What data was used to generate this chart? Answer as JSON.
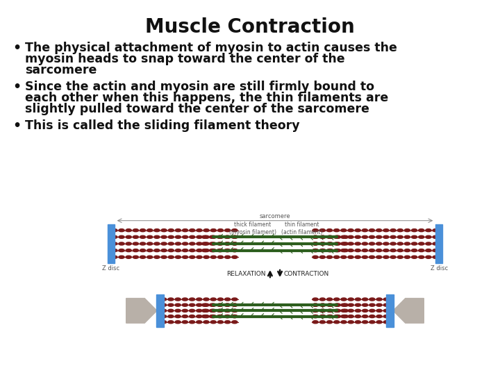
{
  "title": "Muscle Contraction",
  "bullet1_line1": "The physical attachment of myosin to actin causes the",
  "bullet1_line2": "myosin heads to snap toward the center of the",
  "bullet1_line3": "sarcomere",
  "bullet2_line1": "Since the actin and myosin are still firmly bound to",
  "bullet2_line2": "each other when this happens, the thin filaments are",
  "bullet2_line3": "slightly pulled toward the center of the sarcomere",
  "bullet3_line1": "This is called the sliding filament theory",
  "background_color": "#ffffff",
  "title_fontsize": 20,
  "bullet_fontsize": 12.5,
  "actin_color": "#7a1a1a",
  "myosin_color": "#2d5e1e",
  "zdisc_color": "#4a90d9",
  "sarcomere_line_color": "#999999",
  "gray_arrow_color": "#b8b0a8",
  "label_color": "#555555",
  "relaxation_contraction_color": "#222222"
}
